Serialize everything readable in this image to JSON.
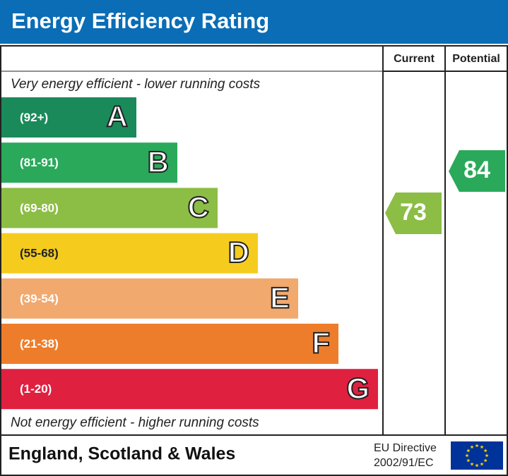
{
  "header": {
    "title": "Energy Efficiency Rating"
  },
  "columns": {
    "current": "Current",
    "potential": "Potential"
  },
  "top_note": "Very energy efficient - lower running costs",
  "bottom_note": "Not energy efficient - higher running costs",
  "bands": [
    {
      "range": "(92+)",
      "letter": "A"
    },
    {
      "range": "(81-91)",
      "letter": "B"
    },
    {
      "range": "(69-80)",
      "letter": "C"
    },
    {
      "range": "(55-68)",
      "letter": "D"
    },
    {
      "range": "(39-54)",
      "letter": "E"
    },
    {
      "range": "(21-38)",
      "letter": "F"
    },
    {
      "range": "(1-20)",
      "letter": "G"
    }
  ],
  "current": 73,
  "potential": 84,
  "footer": {
    "region": "England, Scotland & Wales",
    "directive_line1": "EU Directive",
    "directive_line2": "2002/91/EC"
  }
}
